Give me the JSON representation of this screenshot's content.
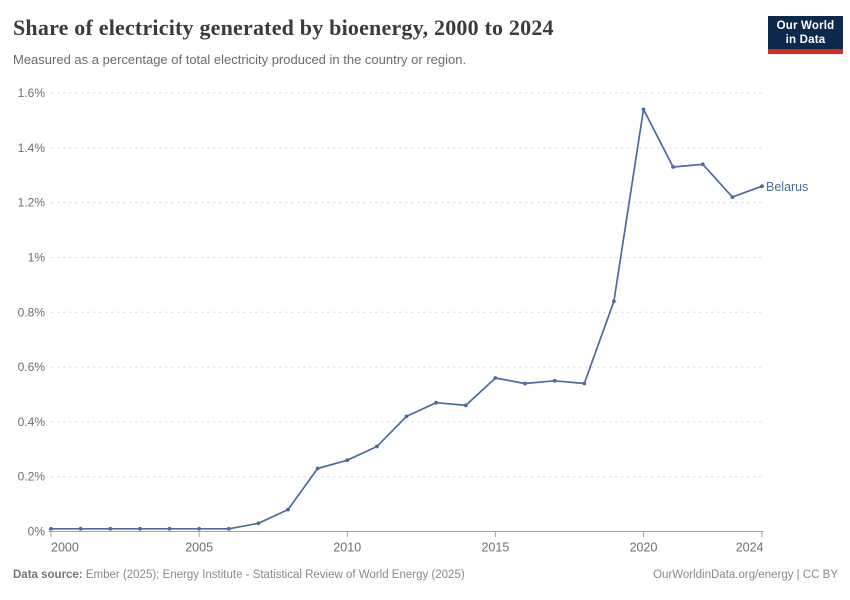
{
  "header": {
    "title": "Share of electricity generated by bioenergy, 2000 to 2024",
    "subtitle": "Measured as a percentage of total electricity produced in the country or region.",
    "logo": {
      "line1": "Our World",
      "line2": "in Data",
      "navy": "#0d2a4e",
      "red": "#d42b21"
    }
  },
  "chart_data": {
    "type": "line",
    "title": "Share of electricity generated by bioenergy, 2000 to 2024",
    "subtitle": "Measured as a percentage of total electricity produced in the country or region.",
    "x": [
      2000,
      2001,
      2002,
      2003,
      2004,
      2005,
      2006,
      2007,
      2008,
      2009,
      2010,
      2011,
      2012,
      2013,
      2014,
      2015,
      2016,
      2017,
      2018,
      2019,
      2020,
      2021,
      2022,
      2023,
      2024
    ],
    "series": [
      {
        "name": "Belarus",
        "color": "#4c6a9e",
        "values": [
          0.01,
          0.01,
          0.01,
          0.01,
          0.01,
          0.01,
          0.01,
          0.03,
          0.08,
          0.23,
          0.26,
          0.31,
          0.42,
          0.47,
          0.46,
          0.56,
          0.54,
          0.55,
          0.54,
          0.84,
          1.54,
          1.33,
          1.34,
          1.22,
          1.26
        ]
      }
    ],
    "xlim": [
      2000,
      2024
    ],
    "ylim": [
      0,
      1.6
    ],
    "x_ticks": [
      2000,
      2005,
      2010,
      2015,
      2020,
      2024
    ],
    "y_ticks": [
      0,
      0.2,
      0.4,
      0.6,
      0.8,
      1.0,
      1.2,
      1.4,
      1.6
    ],
    "y_tick_labels": [
      "0%",
      "0.2%",
      "0.4%",
      "0.6%",
      "0.8%",
      "1%",
      "1.2%",
      "1.4%",
      "1.6%"
    ],
    "xlabel": "",
    "ylabel": "",
    "grid": "horizontal-dashed",
    "legend_position": "end-of-line-label",
    "marker": "dot"
  },
  "colors": {
    "line": "#4c6a9e",
    "grid": "#dcdcdc",
    "axis": "#a3a3a3",
    "tick_label": "#6e6e6e",
    "title": "#3b3b3b",
    "subtitle": "#6b6b6b",
    "footer": "#898989"
  },
  "footer": {
    "source_label": "Data source:",
    "source_text": " Ember (2025); Energy Institute - Statistical Review of World Energy (2025)",
    "rights": "OurWorldinData.org/energy | CC BY"
  }
}
